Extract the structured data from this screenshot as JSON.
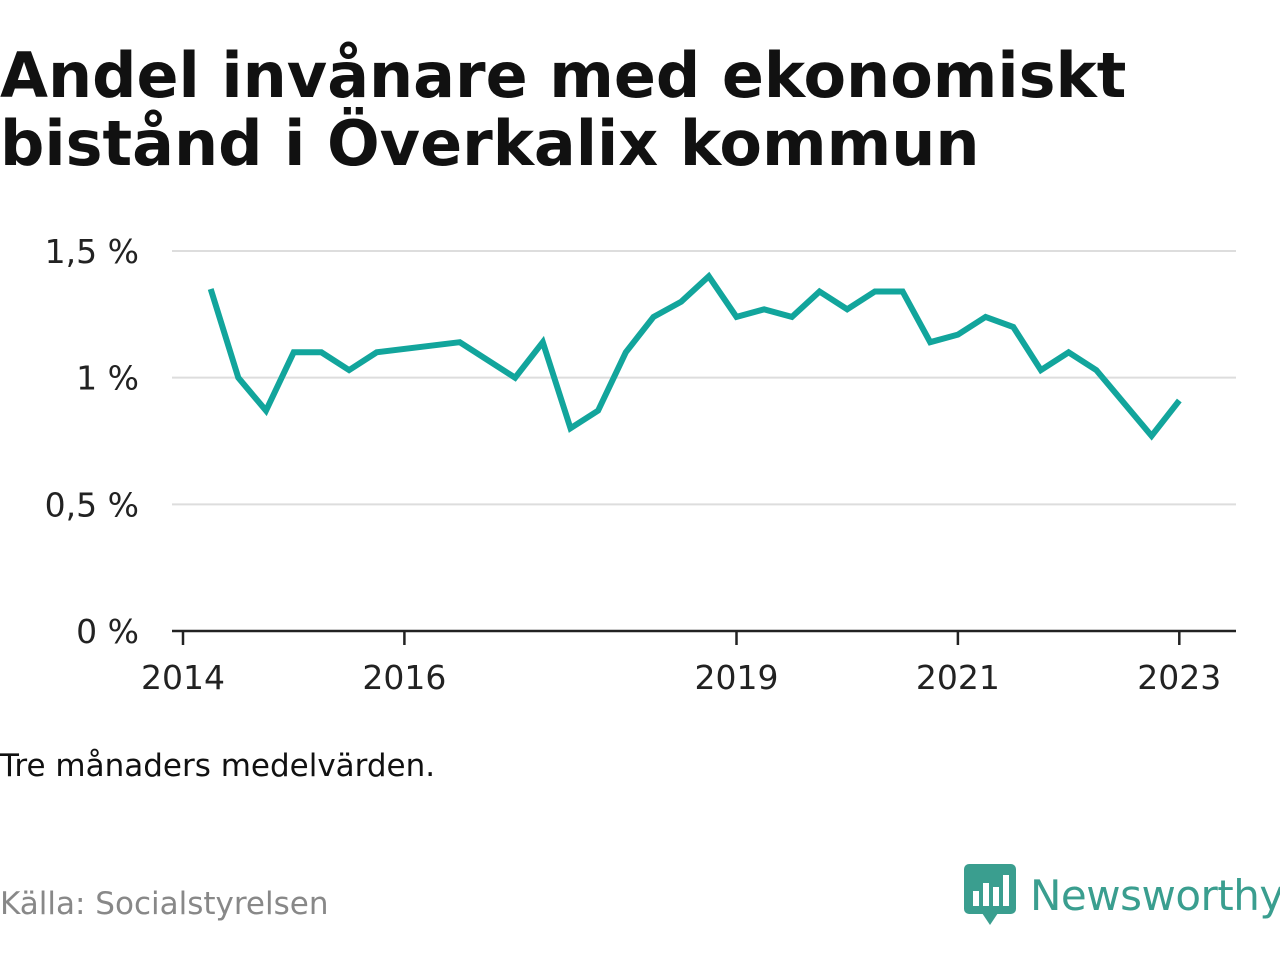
{
  "title": "Andel invånare med ekonomiskt bistånd i Överkalix kommun",
  "note": "Tre månaders medelvärden.",
  "source": "Källa: Socialstyrelsen",
  "brand": {
    "name": "Newsworthy",
    "icon": "newsworthy-logo-icon",
    "color": "#3a9e8f"
  },
  "colors": {
    "line": "#12a59c",
    "grid": "#dddddd",
    "axis": "#222222"
  },
  "chart_data": {
    "type": "line",
    "title": "Andel invånare med ekonomiskt bistånd i Överkalix kommun",
    "xlabel": "",
    "ylabel": "",
    "ylim": [
      0,
      1.5
    ],
    "xlim": [
      "2014-01",
      "2023-09"
    ],
    "yticks": [
      {
        "value": 0,
        "label": "0 %"
      },
      {
        "value": 0.5,
        "label": "0,5 %"
      },
      {
        "value": 1,
        "label": "1 %"
      },
      {
        "value": 1.5,
        "label": "1,5 %"
      }
    ],
    "xticks": [
      {
        "value": "2014-01",
        "label": "2014"
      },
      {
        "value": "2016-01",
        "label": "2016"
      },
      {
        "value": "2019-01",
        "label": "2019"
      },
      {
        "value": "2021-01",
        "label": "2021"
      },
      {
        "value": "2023-01",
        "label": "2023"
      }
    ],
    "grid": true,
    "series": [
      {
        "color": "#12a59c",
        "points": [
          {
            "x": "2014-04",
            "y": 1.35
          },
          {
            "x": "2014-07",
            "y": 1.0
          },
          {
            "x": "2014-10",
            "y": 0.87
          },
          {
            "x": "2015-01",
            "y": 1.1
          },
          {
            "x": "2015-04",
            "y": 1.1
          },
          {
            "x": "2015-07",
            "y": 1.03
          },
          {
            "x": "2015-10",
            "y": 1.1
          },
          {
            "x": "2016-07",
            "y": 1.14
          },
          {
            "x": "2017-01",
            "y": 1.0
          },
          {
            "x": "2017-04",
            "y": 1.14
          },
          {
            "x": "2017-07",
            "y": 0.8
          },
          {
            "x": "2017-10",
            "y": 0.87
          },
          {
            "x": "2018-01",
            "y": 1.1
          },
          {
            "x": "2018-04",
            "y": 1.24
          },
          {
            "x": "2018-07",
            "y": 1.3
          },
          {
            "x": "2018-10",
            "y": 1.4
          },
          {
            "x": "2019-01",
            "y": 1.24
          },
          {
            "x": "2019-04",
            "y": 1.27
          },
          {
            "x": "2019-07",
            "y": 1.24
          },
          {
            "x": "2019-10",
            "y": 1.34
          },
          {
            "x": "2020-01",
            "y": 1.27
          },
          {
            "x": "2020-04",
            "y": 1.34
          },
          {
            "x": "2020-07",
            "y": 1.34
          },
          {
            "x": "2020-10",
            "y": 1.14
          },
          {
            "x": "2021-01",
            "y": 1.17
          },
          {
            "x": "2021-04",
            "y": 1.24
          },
          {
            "x": "2021-07",
            "y": 1.2
          },
          {
            "x": "2021-10",
            "y": 1.03
          },
          {
            "x": "2022-01",
            "y": 1.1
          },
          {
            "x": "2022-04",
            "y": 1.03
          },
          {
            "x": "2022-10",
            "y": 0.77
          },
          {
            "x": "2023-01",
            "y": 0.91
          }
        ]
      }
    ]
  }
}
